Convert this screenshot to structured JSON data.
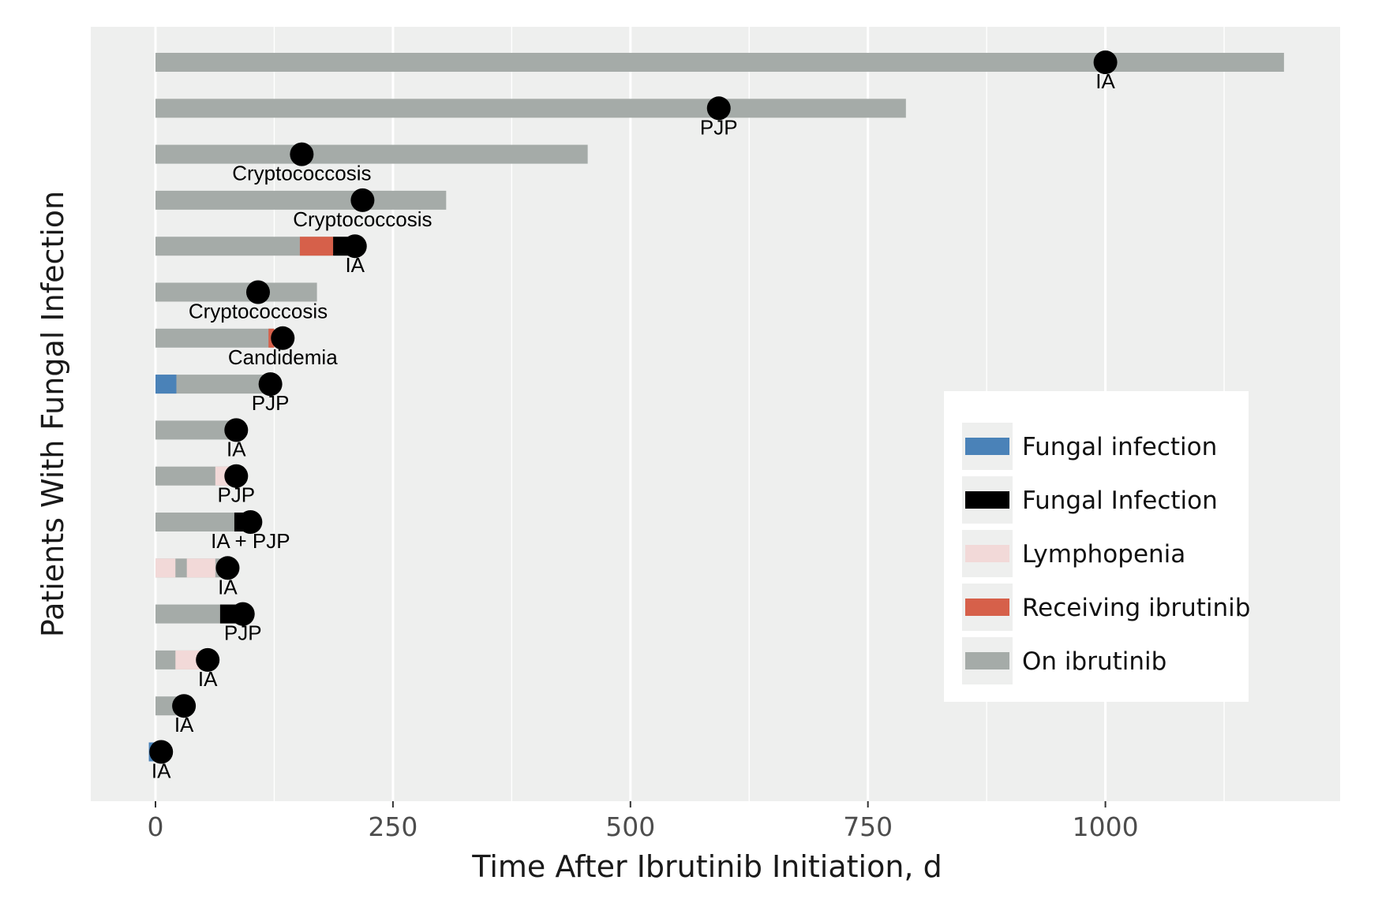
{
  "chart_data": {
    "type": "gantt-timeline",
    "xlabel": "Time After Ibrutinib Initiation, d",
    "ylabel": "Patients With Fungal Infection",
    "xlim": [
      -33,
      1245
    ],
    "x_ticks": [
      0,
      250,
      500,
      750,
      1000
    ],
    "x_tick_labels": [
      "0",
      "250",
      "500",
      "750",
      "1000"
    ],
    "x_minor_gridlines": [
      125,
      375,
      625,
      875,
      1125
    ],
    "grid": true,
    "legend": {
      "placement": "right",
      "items": [
        {
          "key": "fungal_infection_before",
          "label": "Fungal infection",
          "color": "#4a82b8"
        },
        {
          "key": "fungal_infection",
          "label": "Fungal Infection",
          "color": "#000000"
        },
        {
          "key": "lymphopenia",
          "label": "Lymphopenia",
          "color": "#f2d9d8"
        },
        {
          "key": "receiving_ibrutinib",
          "label": "Receiving ibrutinib",
          "color": "#d6604a"
        },
        {
          "key": "on_ibrutinib",
          "label": "On ibrutinib",
          "color": "#a5aba8"
        }
      ]
    },
    "colors": {
      "panel": "#eeefee",
      "gridline": "#ffffff",
      "on_ibrutinib": "#a5aba8",
      "receiving_ibrutinib": "#d6604a",
      "lymphopenia": "#f2d9d8",
      "fungal_infection": "#000000",
      "fungal_infection_before": "#4a82b8"
    },
    "patients": [
      {
        "end": 1188,
        "event_day": 1000,
        "event_label": "IA",
        "segments": []
      },
      {
        "end": 790,
        "event_day": 593,
        "event_label": "PJP",
        "segments": []
      },
      {
        "end": 455,
        "event_day": 154,
        "event_label": "Cryptococcosis",
        "segments": []
      },
      {
        "end": 306,
        "event_day": 218,
        "event_label": "Cryptococcosis",
        "segments": []
      },
      {
        "end": 187,
        "event_day": 210,
        "event_label": "IA",
        "segments": [
          {
            "type": "receiving_ibrutinib",
            "start": 152,
            "end": 187
          },
          {
            "type": "fungal_infection",
            "start": 187,
            "end": 210
          }
        ]
      },
      {
        "end": 170,
        "event_day": 108,
        "event_label": "Cryptococcosis",
        "segments": []
      },
      {
        "end": 125,
        "event_day": 134,
        "event_label": "Candidemia",
        "segments": [
          {
            "type": "receiving_ibrutinib",
            "start": 119,
            "end": 125
          }
        ]
      },
      {
        "end": 120,
        "event_day": 121,
        "event_label": "PJP",
        "segments": [
          {
            "type": "fungal_infection_before",
            "start": 0,
            "end": 22
          }
        ]
      },
      {
        "end": 84,
        "event_day": 85,
        "event_label": "IA",
        "segments": []
      },
      {
        "end": 84,
        "event_day": 85,
        "event_label": "PJP",
        "segments": [
          {
            "type": "lymphopenia",
            "start": 63,
            "end": 78
          }
        ]
      },
      {
        "end": 83,
        "event_day": 100,
        "event_label": "IA + PJP",
        "segments": [
          {
            "type": "fungal_infection",
            "start": 83,
            "end": 100
          }
        ]
      },
      {
        "end": 68,
        "event_day": 76,
        "event_label": "IA",
        "segments": [
          {
            "type": "lymphopenia",
            "start": 0,
            "end": 21
          },
          {
            "type": "lymphopenia",
            "start": 33,
            "end": 63
          }
        ]
      },
      {
        "end": 68,
        "event_day": 92,
        "event_label": "PJP",
        "segments": [
          {
            "type": "fungal_infection",
            "start": 68,
            "end": 92
          }
        ]
      },
      {
        "end": 50,
        "event_day": 55,
        "event_label": "IA",
        "segments": [
          {
            "type": "lymphopenia",
            "start": 21,
            "end": 50
          }
        ]
      },
      {
        "end": 22,
        "event_day": 30,
        "event_label": "IA",
        "segments": []
      },
      {
        "end": 0,
        "event_day": 6,
        "event_label": "IA",
        "segments": [
          {
            "type": "fungal_infection_before",
            "start": -7,
            "end": 0
          }
        ]
      }
    ]
  }
}
